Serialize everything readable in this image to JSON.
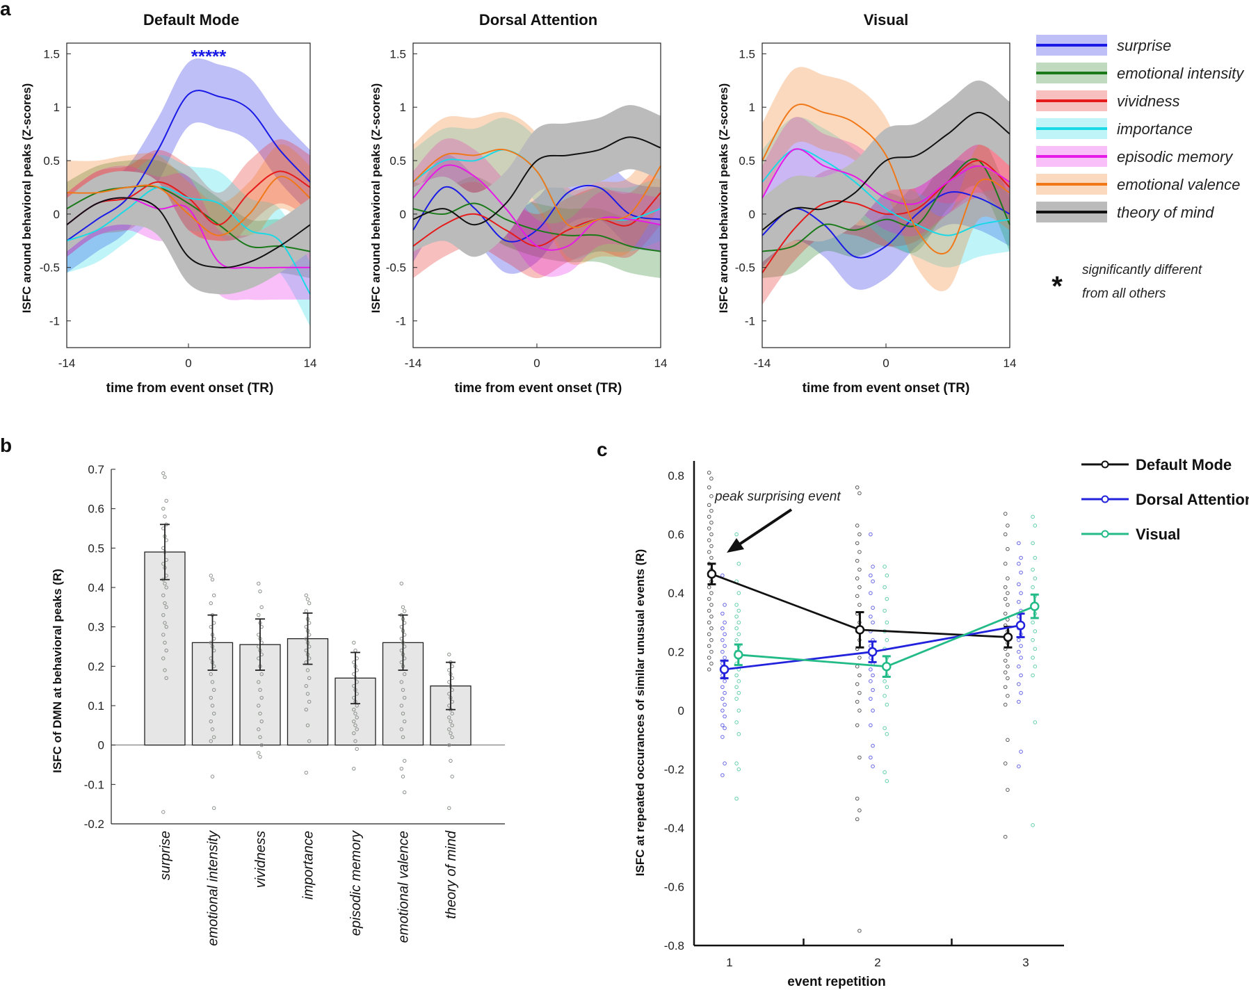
{
  "panel_labels": [
    "a",
    "b",
    "c"
  ],
  "colors": {
    "surprise": "#1a1ae6",
    "emotional intensity": "#1a7a1a",
    "vividness": "#e61a1a",
    "importance": "#1ad9e6",
    "episodic memory": "#e61ae6",
    "emotional valence": "#f07818",
    "theory of mind": "#111111",
    "Default Mode": "#111111",
    "Dorsal Attention": "#2222dd",
    "Visual": "#22bb88"
  },
  "legend_a": {
    "items": [
      "surprise",
      "emotional intensity",
      "vividness",
      "importance",
      "episodic memory",
      "emotional valence",
      "theory of mind"
    ],
    "star_symbol": "*",
    "star_note_line1": "significantly different",
    "star_note_line2": "from all others"
  },
  "chart_data": [
    {
      "type": "line",
      "title": "Default Mode",
      "xlabel": "time from event onset (TR)",
      "ylabel": "ISFC around behavioral peaks (Z-scores)",
      "xlim": [
        -14,
        14
      ],
      "ylim": [
        -1.25,
        1.6
      ],
      "x_ticks": [
        "-14",
        "0",
        "14"
      ],
      "y_ticks": [
        "1.5",
        "1",
        "0.5",
        "0",
        "-0.5",
        "-1"
      ],
      "annotation": "*****",
      "x": [
        -14,
        -10.5,
        -7,
        -3.5,
        0,
        3.5,
        7,
        10.5,
        14
      ],
      "series": [
        {
          "name": "surprise",
          "values": [
            -0.25,
            -0.05,
            0.15,
            0.6,
            1.12,
            1.1,
            0.98,
            0.6,
            0.3
          ],
          "band": 0.3
        },
        {
          "name": "emotional intensity",
          "values": [
            0.05,
            0.2,
            0.25,
            0.25,
            0.1,
            -0.1,
            -0.3,
            -0.3,
            -0.35
          ],
          "band": 0.25
        },
        {
          "name": "vividness",
          "values": [
            -0.1,
            0.1,
            0.15,
            0.3,
            0.15,
            -0.1,
            0.2,
            0.4,
            0.25
          ],
          "band": 0.3
        },
        {
          "name": "importance",
          "values": [
            -0.25,
            -0.15,
            0.05,
            0.25,
            0.15,
            0.1,
            -0.15,
            -0.25,
            -0.75
          ],
          "band": 0.3
        },
        {
          "name": "episodic memory",
          "values": [
            -0.1,
            0.1,
            0.15,
            0.05,
            0.05,
            -0.45,
            -0.5,
            -0.5,
            -0.5
          ],
          "band": 0.3
        },
        {
          "name": "emotional valence",
          "values": [
            0.2,
            0.2,
            0.25,
            0.25,
            0.0,
            -0.2,
            0.0,
            0.35,
            0.15
          ],
          "band": 0.3
        },
        {
          "name": "theory of mind",
          "values": [
            -0.1,
            0.1,
            0.15,
            0.05,
            -0.4,
            -0.5,
            -0.45,
            -0.3,
            -0.1
          ],
          "band": 0.25
        }
      ]
    },
    {
      "type": "line",
      "title": "Dorsal Attention",
      "xlabel": "time from event onset (TR)",
      "ylabel": "ISFC around behavioral peaks (Z-scores)",
      "xlim": [
        -14,
        14
      ],
      "ylim": [
        -1.25,
        1.6
      ],
      "x_ticks": [
        "-14",
        "0",
        "14"
      ],
      "y_ticks": [
        "1.5",
        "1",
        "0.5",
        "0",
        "-0.5",
        "-1"
      ],
      "x": [
        -14,
        -10.5,
        -7,
        -3.5,
        0,
        3.5,
        7,
        10.5,
        14
      ],
      "series": [
        {
          "name": "surprise",
          "values": [
            -0.15,
            0.25,
            0.05,
            -0.25,
            -0.15,
            0.2,
            0.25,
            0.0,
            -0.05
          ],
          "band": 0.3
        },
        {
          "name": "emotional intensity",
          "values": [
            0.05,
            0.0,
            0.1,
            -0.05,
            -0.15,
            -0.2,
            -0.2,
            -0.3,
            -0.35
          ],
          "band": 0.25
        },
        {
          "name": "vividness",
          "values": [
            -0.3,
            -0.1,
            0.0,
            -0.15,
            -0.3,
            -0.15,
            -0.05,
            -0.1,
            0.2
          ],
          "band": 0.3
        },
        {
          "name": "importance",
          "values": [
            0.3,
            0.5,
            0.5,
            0.6,
            0.4,
            -0.1,
            -0.05,
            -0.05,
            0.05
          ],
          "band": 0.3
        },
        {
          "name": "episodic memory",
          "values": [
            0.15,
            0.45,
            0.35,
            0.05,
            -0.3,
            -0.3,
            -0.05,
            -0.05,
            -0.1
          ],
          "band": 0.25
        },
        {
          "name": "emotional valence",
          "values": [
            0.3,
            0.55,
            0.55,
            0.6,
            0.4,
            -0.1,
            -0.05,
            0.0,
            0.45
          ],
          "band": 0.35
        },
        {
          "name": "theory of mind",
          "values": [
            -0.05,
            0.05,
            -0.1,
            0.1,
            0.5,
            0.55,
            0.6,
            0.72,
            0.62
          ],
          "band": 0.3
        }
      ]
    },
    {
      "type": "line",
      "title": "Visual",
      "xlabel": "time from event onset (TR)",
      "ylabel": "ISFC around behavioral peaks (Z-scores)",
      "xlim": [
        -14,
        14
      ],
      "ylim": [
        -1.25,
        1.6
      ],
      "x_ticks": [
        "-14",
        "0",
        "14"
      ],
      "y_ticks": [
        "1.5",
        "1",
        "0.5",
        "0",
        "-0.5",
        "-1"
      ],
      "x": [
        -14,
        -10.5,
        -7,
        -3.5,
        0,
        3.5,
        7,
        10.5,
        14
      ],
      "series": [
        {
          "name": "surprise",
          "values": [
            -0.2,
            0.05,
            -0.1,
            -0.4,
            -0.3,
            0.0,
            0.2,
            0.15,
            0.0
          ],
          "band": 0.3
        },
        {
          "name": "emotional intensity",
          "values": [
            -0.35,
            -0.3,
            -0.1,
            -0.15,
            -0.05,
            -0.1,
            0.3,
            0.5,
            -0.1
          ],
          "band": 0.25
        },
        {
          "name": "vividness",
          "values": [
            -0.55,
            -0.15,
            0.1,
            0.1,
            0.0,
            0.05,
            0.3,
            0.5,
            0.25
          ],
          "band": 0.3
        },
        {
          "name": "importance",
          "values": [
            0.3,
            0.6,
            0.5,
            0.3,
            0.05,
            -0.1,
            -0.2,
            -0.1,
            -0.05
          ],
          "band": 0.3
        },
        {
          "name": "episodic memory",
          "values": [
            0.15,
            0.6,
            0.45,
            0.35,
            0.15,
            0.1,
            0.3,
            0.45,
            0.3
          ],
          "band": 0.3
        },
        {
          "name": "emotional valence",
          "values": [
            0.5,
            1.0,
            0.95,
            0.85,
            0.55,
            -0.15,
            -0.35,
            0.3,
            0.2
          ],
          "band": 0.35
        },
        {
          "name": "theory of mind",
          "values": [
            -0.15,
            0.05,
            0.05,
            0.2,
            0.5,
            0.55,
            0.75,
            0.95,
            0.75
          ],
          "band": 0.3
        }
      ]
    },
    {
      "type": "bar",
      "ylabel": "ISFC of DMN at behavioral peaks (R)",
      "categories": [
        "surprise",
        "emotional intensity",
        "vividness",
        "importance",
        "episodic memory",
        "emotional valence",
        "theory of mind"
      ],
      "values": [
        0.49,
        0.26,
        0.255,
        0.27,
        0.17,
        0.26,
        0.15
      ],
      "errors": [
        0.07,
        0.07,
        0.065,
        0.065,
        0.065,
        0.07,
        0.06
      ],
      "points": [
        [
          0.69,
          0.68,
          0.62,
          0.6,
          0.58,
          0.56,
          0.55,
          0.53,
          0.52,
          0.5,
          0.49,
          0.47,
          0.46,
          0.45,
          0.43,
          0.42,
          0.41,
          0.4,
          0.38,
          0.36,
          0.35,
          0.33,
          0.31,
          0.3,
          0.28,
          0.26,
          0.24,
          0.22,
          0.19,
          0.17,
          -0.17
        ],
        [
          0.43,
          0.42,
          0.38,
          0.36,
          0.33,
          0.31,
          0.3,
          0.28,
          0.27,
          0.26,
          0.25,
          0.24,
          0.22,
          0.21,
          0.2,
          0.18,
          0.16,
          0.14,
          0.12,
          0.1,
          0.08,
          0.06,
          0.04,
          0.02,
          0.01,
          -0.08,
          -0.16
        ],
        [
          0.41,
          0.39,
          0.35,
          0.33,
          0.31,
          0.3,
          0.28,
          0.27,
          0.26,
          0.25,
          0.24,
          0.23,
          0.22,
          0.2,
          0.18,
          0.16,
          0.14,
          0.12,
          0.1,
          0.08,
          0.06,
          0.04,
          0.02,
          0.0,
          -0.02,
          -0.03
        ],
        [
          0.38,
          0.37,
          0.36,
          0.34,
          0.32,
          0.31,
          0.3,
          0.29,
          0.28,
          0.27,
          0.26,
          0.25,
          0.24,
          0.23,
          0.22,
          0.21,
          0.19,
          0.17,
          0.15,
          0.13,
          0.11,
          0.09,
          0.05,
          0.01,
          -0.07
        ],
        [
          0.26,
          0.24,
          0.22,
          0.21,
          0.2,
          0.19,
          0.18,
          0.17,
          0.16,
          0.15,
          0.14,
          0.13,
          0.12,
          0.11,
          0.1,
          0.09,
          0.08,
          0.07,
          0.06,
          0.05,
          0.04,
          0.03,
          0.01,
          -0.01,
          -0.06
        ],
        [
          0.41,
          0.35,
          0.34,
          0.33,
          0.32,
          0.31,
          0.3,
          0.29,
          0.28,
          0.27,
          0.26,
          0.25,
          0.24,
          0.23,
          0.22,
          0.21,
          0.2,
          0.18,
          0.16,
          0.14,
          0.12,
          0.1,
          0.08,
          0.06,
          0.04,
          0.02,
          -0.04,
          -0.06,
          -0.08,
          -0.12
        ],
        [
          0.23,
          0.21,
          0.2,
          0.19,
          0.18,
          0.17,
          0.16,
          0.15,
          0.14,
          0.13,
          0.12,
          0.11,
          0.1,
          0.09,
          0.08,
          0.07,
          0.06,
          0.05,
          0.04,
          0.03,
          0.02,
          0.0,
          -0.04,
          -0.08,
          -0.16
        ]
      ],
      "ylim": [
        -0.2,
        0.7
      ],
      "y_ticks": [
        "0.7",
        "0.6",
        "0.5",
        "0.4",
        "0.3",
        "0.2",
        "0.1",
        "0",
        "-0.1",
        "-0.2"
      ]
    },
    {
      "type": "line",
      "xlabel": "event repetition",
      "ylabel": "ISFC at repeated occurances of similar unusual events (R)",
      "x_ticks": [
        "1",
        "2",
        "3"
      ],
      "y_ticks": [
        "0.8",
        "0.6",
        "0.4",
        "0.2",
        "0",
        "-0.2",
        "-0.4",
        "-0.6",
        "-0.8"
      ],
      "ylim": [
        -0.8,
        0.85
      ],
      "annotation": "peak surprising event",
      "series": [
        {
          "name": "Default Mode",
          "x": [
            1,
            2,
            3
          ],
          "values": [
            0.465,
            0.275,
            0.25
          ],
          "errors": [
            0.035,
            0.06,
            0.035
          ],
          "points": [
            [
              0.81,
              0.79,
              0.76,
              0.73,
              0.7,
              0.68,
              0.66,
              0.64,
              0.62,
              0.6,
              0.58,
              0.56,
              0.54,
              0.52,
              0.5,
              0.48,
              0.46,
              0.44,
              0.42,
              0.4,
              0.38,
              0.36,
              0.34,
              0.32,
              0.3,
              0.28,
              0.26,
              0.24,
              0.22,
              0.2,
              0.18,
              0.16,
              0.14
            ],
            [
              0.76,
              0.74,
              0.63,
              0.6,
              0.57,
              0.54,
              0.51,
              0.48,
              0.45,
              0.42,
              0.39,
              0.36,
              0.33,
              0.3,
              0.27,
              0.24,
              0.21,
              0.18,
              0.15,
              0.12,
              0.09,
              0.06,
              0.03,
              0.0,
              -0.05,
              -0.16,
              -0.3,
              -0.34,
              -0.37,
              -0.75
            ],
            [
              0.67,
              0.63,
              0.6,
              0.55,
              0.5,
              0.45,
              0.42,
              0.4,
              0.38,
              0.36,
              0.33,
              0.31,
              0.29,
              0.27,
              0.25,
              0.23,
              0.21,
              0.19,
              0.17,
              0.15,
              0.13,
              0.11,
              0.08,
              0.05,
              0.02,
              -0.1,
              -0.18,
              -0.27,
              -0.43
            ]
          ]
        },
        {
          "name": "Dorsal Attention",
          "x": [
            1,
            2,
            3
          ],
          "values": [
            0.14,
            0.2,
            0.29
          ],
          "errors": [
            0.03,
            0.035,
            0.04
          ],
          "points": [
            [
              0.46,
              0.36,
              0.33,
              0.3,
              0.28,
              0.26,
              0.24,
              0.22,
              0.2,
              0.18,
              0.16,
              0.14,
              0.12,
              0.1,
              0.08,
              0.06,
              0.04,
              0.02,
              0.0,
              -0.02,
              -0.05,
              -0.06,
              -0.09,
              -0.18,
              -0.22
            ],
            [
              0.6,
              0.49,
              0.46,
              0.44,
              0.4,
              0.35,
              0.32,
              0.3,
              0.27,
              0.24,
              0.22,
              0.2,
              0.18,
              0.16,
              0.14,
              0.12,
              0.1,
              0.07,
              0.04,
              0.0,
              -0.05,
              -0.12,
              -0.16,
              -0.19
            ],
            [
              0.57,
              0.52,
              0.5,
              0.47,
              0.43,
              0.4,
              0.37,
              0.34,
              0.32,
              0.3,
              0.28,
              0.26,
              0.24,
              0.22,
              0.2,
              0.18,
              0.15,
              0.12,
              0.09,
              0.06,
              0.03,
              -0.14,
              -0.19
            ]
          ]
        },
        {
          "name": "Visual",
          "x": [
            1,
            2,
            3
          ],
          "values": [
            0.19,
            0.15,
            0.355
          ],
          "errors": [
            0.035,
            0.035,
            0.04
          ],
          "points": [
            [
              0.6,
              0.5,
              0.44,
              0.4,
              0.36,
              0.34,
              0.32,
              0.3,
              0.28,
              0.26,
              0.24,
              0.22,
              0.2,
              0.18,
              0.16,
              0.14,
              0.12,
              0.1,
              0.08,
              0.06,
              0.04,
              0.0,
              -0.04,
              -0.08,
              -0.18,
              -0.2,
              -0.3
            ],
            [
              0.49,
              0.46,
              0.42,
              0.38,
              0.34,
              0.3,
              0.27,
              0.24,
              0.21,
              0.18,
              0.15,
              0.12,
              0.1,
              0.08,
              0.05,
              0.02,
              -0.06,
              -0.08,
              -0.21,
              -0.24
            ],
            [
              0.66,
              0.63,
              0.57,
              0.52,
              0.48,
              0.45,
              0.42,
              0.39,
              0.36,
              0.33,
              0.3,
              0.27,
              0.24,
              0.21,
              0.18,
              0.15,
              0.12,
              -0.04,
              -0.39
            ]
          ]
        }
      ]
    }
  ]
}
